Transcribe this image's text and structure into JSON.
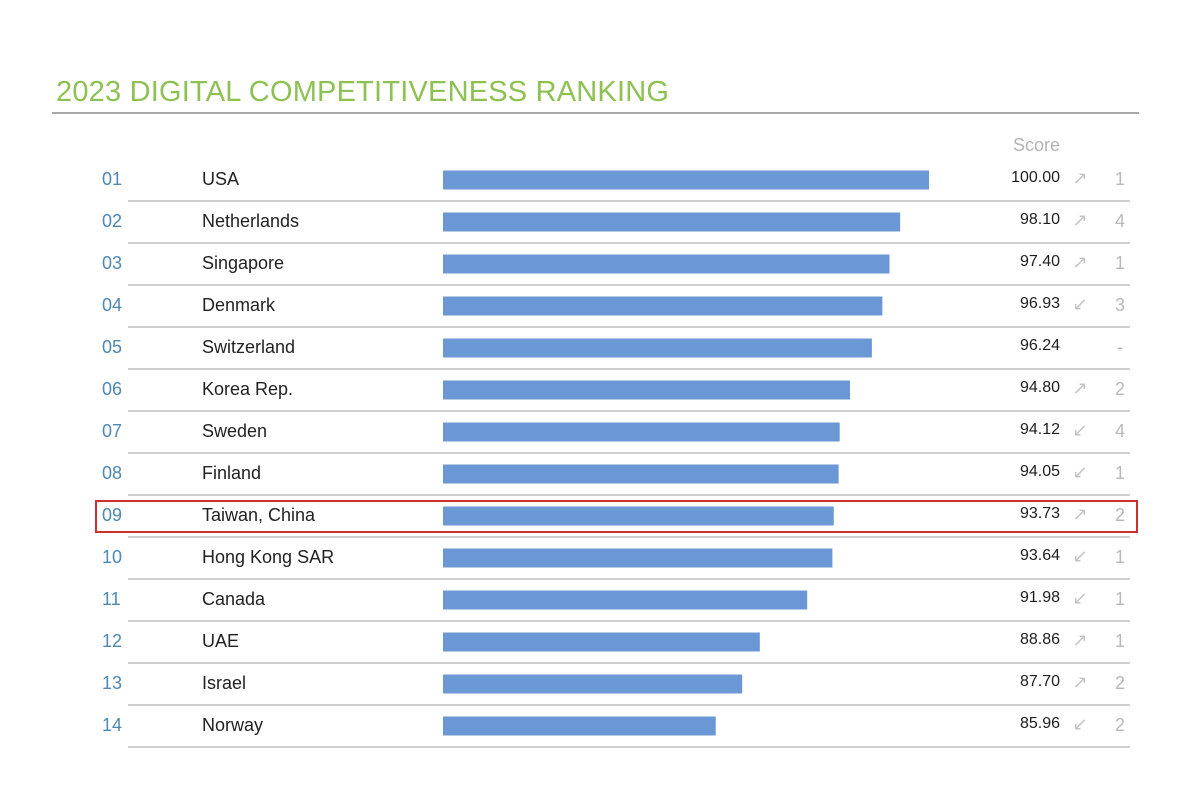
{
  "title": "2023 DIGITAL COMPETITIVENESS RANKING",
  "score_header": "Score",
  "colors": {
    "title": "#8dc152",
    "bar": "#6b98d5",
    "rank": "#4e88b3",
    "highlight": "#cf2e2e"
  },
  "icons": {
    "up": "up-right-arrow-icon",
    "down": "down-left-arrow-icon",
    "none": "no-change"
  },
  "highlighted_rank": "09",
  "chart_data": {
    "type": "bar",
    "orientation": "horizontal",
    "title": "2023 DIGITAL COMPETITIVENESS RANKING",
    "value_label": "Score",
    "xlim": [
      0,
      100
    ],
    "grid": false,
    "legend": "none",
    "rows": [
      {
        "rank": "01",
        "country": "USA",
        "score": 100.0,
        "score_text": "100.00",
        "trend": "up",
        "trend_glyph": "↗",
        "change": "1"
      },
      {
        "rank": "02",
        "country": "Netherlands",
        "score": 98.1,
        "score_text": "98.10",
        "trend": "up",
        "trend_glyph": "↗",
        "change": "4"
      },
      {
        "rank": "03",
        "country": "Singapore",
        "score": 97.4,
        "score_text": "97.40",
        "trend": "up",
        "trend_glyph": "↗",
        "change": "1"
      },
      {
        "rank": "04",
        "country": "Denmark",
        "score": 96.93,
        "score_text": "96.93",
        "trend": "down",
        "trend_glyph": "↙",
        "change": "3"
      },
      {
        "rank": "05",
        "country": "Switzerland",
        "score": 96.24,
        "score_text": "96.24",
        "trend": "none",
        "trend_glyph": "",
        "change": "-"
      },
      {
        "rank": "06",
        "country": "Korea Rep.",
        "score": 94.8,
        "score_text": "94.80",
        "trend": "up",
        "trend_glyph": "↗",
        "change": "2"
      },
      {
        "rank": "07",
        "country": "Sweden",
        "score": 94.12,
        "score_text": "94.12",
        "trend": "down",
        "trend_glyph": "↙",
        "change": "4"
      },
      {
        "rank": "08",
        "country": "Finland",
        "score": 94.05,
        "score_text": "94.05",
        "trend": "down",
        "trend_glyph": "↙",
        "change": "1"
      },
      {
        "rank": "09",
        "country": "Taiwan, China",
        "score": 93.73,
        "score_text": "93.73",
        "trend": "up",
        "trend_glyph": "↗",
        "change": "2"
      },
      {
        "rank": "10",
        "country": "Hong Kong SAR",
        "score": 93.64,
        "score_text": "93.64",
        "trend": "down",
        "trend_glyph": "↙",
        "change": "1"
      },
      {
        "rank": "11",
        "country": "Canada",
        "score": 91.98,
        "score_text": "91.98",
        "trend": "down",
        "trend_glyph": "↙",
        "change": "1"
      },
      {
        "rank": "12",
        "country": "UAE",
        "score": 88.86,
        "score_text": "88.86",
        "trend": "up",
        "trend_glyph": "↗",
        "change": "1"
      },
      {
        "rank": "13",
        "country": "Israel",
        "score": 87.7,
        "score_text": "87.70",
        "trend": "up",
        "trend_glyph": "↗",
        "change": "2"
      },
      {
        "rank": "14",
        "country": "Norway",
        "score": 85.96,
        "score_text": "85.96",
        "trend": "down",
        "trend_glyph": "↙",
        "change": "2"
      }
    ]
  }
}
